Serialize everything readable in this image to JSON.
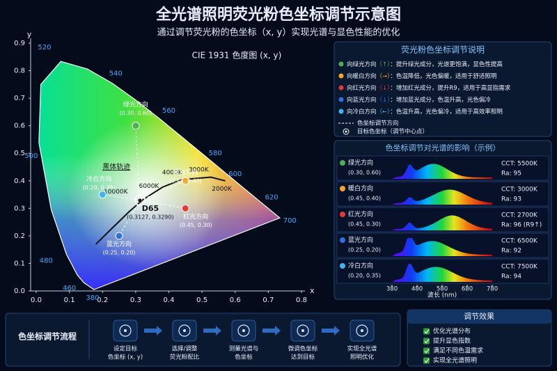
{
  "header": {
    "title": "全光谱照明荧光粉色坐标调节示意图",
    "subtitle": "通过调节荧光粉的色坐标（x, y）实现光谱与显色性能的优化"
  },
  "chart_data": {
    "type": "scatter",
    "title": "CIE 1931 色度图 (x, y)",
    "x_label": "x",
    "y_label": "y",
    "xlim": [
      0,
      0.8
    ],
    "ylim": [
      0,
      0.9
    ],
    "xticks": [
      {
        "value": 0,
        "label": "0.0"
      },
      0.1,
      0.2,
      0.3,
      0.4,
      0.5,
      0.6,
      0.7,
      0.8
    ],
    "yticks": [
      {
        "value": 0,
        "label": "0.0"
      },
      0.1,
      0.2,
      0.3,
      0.4,
      0.5,
      0.6,
      0.7,
      0.8,
      0.9
    ],
    "wavelength_labels": [
      380,
      460,
      480,
      500,
      520,
      540,
      560,
      580,
      600,
      620,
      700
    ],
    "planckian_locus": {
      "label": "黑体轨迹",
      "temperatures": [
        "10000K",
        "6000K",
        "4000K",
        "3000K",
        "2000K"
      ]
    },
    "series": [
      {
        "name": "绿光方向",
        "color": "#4caf50",
        "x": [
          0.3
        ],
        "values": [
          0.6
        ],
        "coord_label": "(0.30, 0.60)"
      },
      {
        "name": "暖白方向",
        "color": "#f5a623",
        "x": [
          0.45
        ],
        "values": [
          0.4
        ],
        "coord_label": "(0.45, 0.40)"
      },
      {
        "name": "红光方向",
        "color": "#e53935",
        "x": [
          0.45
        ],
        "values": [
          0.3
        ],
        "coord_label": "(0.45, 0.30)"
      },
      {
        "name": "蓝光方向",
        "color": "#2f6fe0",
        "x": [
          0.25
        ],
        "values": [
          0.2
        ],
        "coord_label": "(0.25, 0.20)"
      },
      {
        "name": "冷白方向",
        "color": "#3fb6f0",
        "x": [
          0.2
        ],
        "values": [
          0.35
        ],
        "coord_label": "(0.20, 0.35)"
      },
      {
        "name": "D65",
        "color": "#ffffff",
        "x": [
          0.3127
        ],
        "values": [
          0.329
        ],
        "coord_label": "(0.3127, 0.3290)"
      }
    ]
  },
  "legend_panel": {
    "title": "荧光粉色坐标调节说明",
    "items": [
      {
        "name": "向绿光方向",
        "arrow": "（↑）",
        "desc": "：提升绿光成分，光谱更饱满，显色性提高",
        "color": "#4caf50"
      },
      {
        "name": "向暖白方向",
        "arrow": "（→）",
        "desc": "：色温降低，光色偏暖，适用于舒适照明",
        "color": "#f5a623"
      },
      {
        "name": "向红光方向",
        "arrow": "（↓）",
        "desc": "：增加红光成分，提升R9，适用于高显指需求",
        "color": "#e53935"
      },
      {
        "name": "向蓝光方向",
        "arrow": "（↓）",
        "desc": "：增加蓝光成分，色温升高，光色偏冷",
        "color": "#2f6fe0"
      },
      {
        "name": "向冷白方向",
        "arrow": "（←）",
        "desc": "：色温升高，光色偏冷，适用于高效率照明",
        "color": "#3fb6f0"
      }
    ],
    "dashed": "色坐标调节方向",
    "target": "目标色坐标（调节中心点）"
  },
  "spectra": {
    "title": "色坐标调节对光谱的影响（示例）",
    "x_label": "波长 (nm)",
    "xlim": [
      380,
      780
    ],
    "xticks": [
      380,
      480,
      580,
      680,
      780
    ],
    "rows": [
      {
        "name": "绿光方向",
        "coord": "(0.30, 0.60)",
        "cct": "CCT: 5500K",
        "ra": "Ra: 95",
        "color": "#4caf50"
      },
      {
        "name": "暖白方向",
        "coord": "(0.45, 0.40)",
        "cct": "CCT: 3000K",
        "ra": "Ra: 93",
        "color": "#f5a623"
      },
      {
        "name": "红光方向",
        "coord": "(0.45, 0.30)",
        "cct": "CCT: 2700K",
        "ra": "Ra: 96 (R9↑)",
        "color": "#e53935"
      },
      {
        "name": "蓝光方向",
        "coord": "(0.25, 0.20)",
        "cct": "CCT: 6500K",
        "ra": "Ra: 92",
        "color": "#2f6fe0"
      },
      {
        "name": "冷白方向",
        "coord": "(0.20, 0.35)",
        "cct": "CCT: 7500K",
        "ra": "Ra: 94",
        "color": "#3fb6f0"
      }
    ]
  },
  "process": {
    "title": "色坐标调节流程",
    "steps": [
      [
        "设定目标",
        "色坐标 (x, y)"
      ],
      [
        "选择/调整",
        "荧光粉配比"
      ],
      [
        "测量光谱与",
        "色坐标"
      ],
      [
        "微调色坐标",
        "达到目标"
      ],
      [
        "实现全光谱",
        "照明优化"
      ]
    ]
  },
  "effects": {
    "title": "调节效果",
    "items": [
      "优化光谱分布",
      "提升显色指数",
      "满足不同色温需求",
      "实现全光谱照明"
    ]
  }
}
